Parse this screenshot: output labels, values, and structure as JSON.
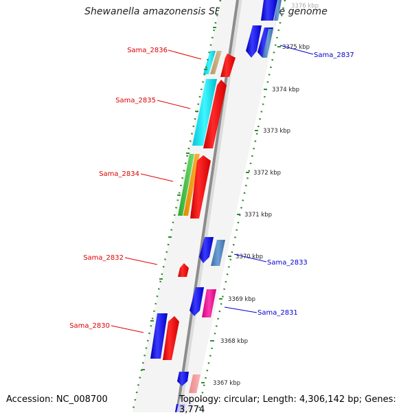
{
  "title": "Shewanella amazonensis SB2B, complete genome",
  "footer": {
    "accession": "Accession: NC_008700",
    "summary": "Topology: circular; Length: 4,306,142 bp; Genes: 3,774"
  },
  "colors": {
    "backbone": "#8c8c8c",
    "tick": "#2e8b2e",
    "label_left": "#dd0000",
    "label_right": "#0000cc",
    "strand_panel": "#f2f2f2"
  },
  "scale_labels": [
    "3376 kbp",
    "3375 kbp",
    "3374 kbp",
    "3373 kbp",
    "3372 kbp",
    "3371 kbp",
    "3370 kbp",
    "3369 kbp",
    "3368 kbp",
    "3367 kbp"
  ],
  "gene_labels_left": [
    "Sama_2836",
    "Sama_2835",
    "Sama_2834",
    "Sama_2832",
    "Sama_2830"
  ],
  "gene_labels_right": [
    "Sama_2837",
    "Sama_2833",
    "Sama_2831"
  ],
  "genes": [
    {
      "name": "Sama_2837",
      "color": "#1a1aff",
      "strand": "forward"
    },
    {
      "name": "Sama_2836",
      "color": "#ff0000",
      "strand": "reverse"
    },
    {
      "name": "Sama_2835",
      "color": "#ff0000",
      "strand": "reverse"
    },
    {
      "name": "Sama_2834",
      "color": "#ff0000",
      "strand": "reverse"
    },
    {
      "name": "Sama_2833",
      "color": "#1a1aff",
      "strand": "forward"
    },
    {
      "name": "Sama_2832",
      "color": "#ff0000",
      "strand": "reverse"
    },
    {
      "name": "Sama_2831",
      "color": "#1a1aff",
      "strand": "forward"
    },
    {
      "name": "Sama_2830",
      "color": "#ff0000",
      "strand": "reverse"
    }
  ]
}
